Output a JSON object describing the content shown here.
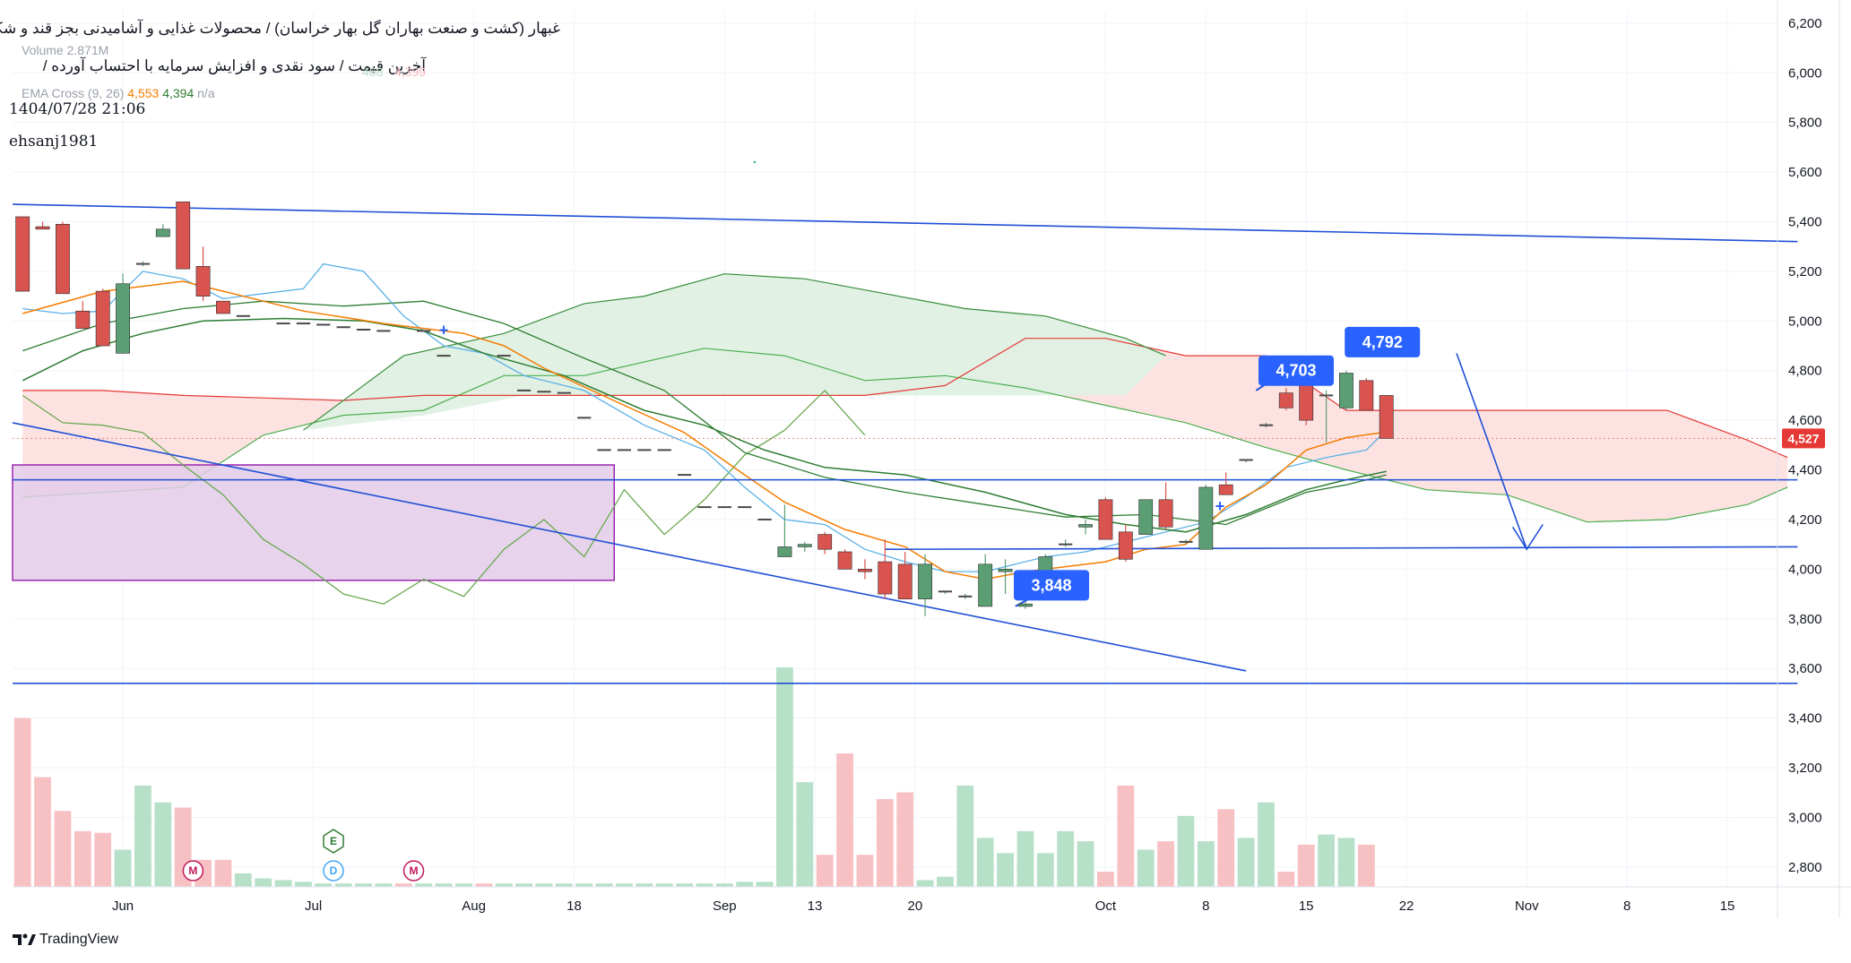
{
  "header": {
    "title_line1": "غبهار (کشت و صنعت بهاران گل بهار خراسان) / محصولات غذایی و آشامیدنی بجز قند و شکر",
    "title_line2": "آخرین قیمت / سود نقدی و افزایش سرمایه با احتساب آورده /",
    "datetime": "1404/07/28 21:06",
    "author": "ehsanj1981",
    "volume_label": "Volume",
    "volume_value": "2.871M",
    "ema_label": "EMA Cross (9, 26)",
    "ema_fast": "4,553",
    "ema_slow": "4,394",
    "ema_na": "n/a",
    "ghost_values": [
      "468",
      "4,399"
    ]
  },
  "branding": {
    "logo_text": "TradingView"
  },
  "colors": {
    "up": "#5c9e74",
    "down": "#d9534f",
    "vol_up": "#b7e0c8",
    "vol_down": "#f7c1c4",
    "trend_blue": "#1f4fd6",
    "tenkan": "#5ab0e8",
    "kijun": "#8b1a1a",
    "ema_fast": "#f57c00",
    "ema_slow": "#2e7d32",
    "chikou": "#6aa84f",
    "cloud_red": "#fde0e0",
    "cloud_green": "#dff0e3",
    "box_purple": "#e3cde9",
    "last_price_bg": "#e53935"
  },
  "chart_data": {
    "type": "candlestick",
    "y_axis": {
      "ticks": [
        2800,
        3000,
        3200,
        3400,
        3600,
        3800,
        4000,
        4200,
        4400,
        4600,
        4800,
        5000,
        5200,
        5400,
        5600,
        5800,
        6000,
        6200
      ],
      "ylim": [
        2720,
        6250
      ],
      "side": "right"
    },
    "x_axis": {
      "ticks": [
        "Jun",
        "Jul",
        "Aug",
        "18",
        "Sep",
        "13",
        "20",
        "Oct",
        "8",
        "15",
        "22",
        "Nov",
        "8",
        "15"
      ],
      "tick_bar_index": [
        5,
        14.5,
        22.5,
        27.5,
        35,
        39.5,
        44.5,
        54,
        59,
        64,
        69,
        75,
        80,
        85
      ]
    },
    "bars_count": 88,
    "candles": [
      {
        "i": 0,
        "o": 5420,
        "h": 5420,
        "l": 5120,
        "c": 5120
      },
      {
        "i": 1,
        "o": 5380,
        "h": 5400,
        "l": 5370,
        "c": 5370
      },
      {
        "i": 2,
        "o": 5390,
        "h": 5400,
        "l": 5110,
        "c": 5110
      },
      {
        "i": 3,
        "o": 5040,
        "h": 5080,
        "l": 4970,
        "c": 4970
      },
      {
        "i": 4,
        "o": 5120,
        "h": 5130,
        "l": 4900,
        "c": 4900
      },
      {
        "i": 5,
        "o": 4870,
        "h": 5190,
        "l": 4870,
        "c": 5150
      },
      {
        "i": 6,
        "o": 5230,
        "h": 5240,
        "l": 5220,
        "c": 5230
      },
      {
        "i": 7,
        "o": 5340,
        "h": 5390,
        "l": 5340,
        "c": 5370
      },
      {
        "i": 8,
        "o": 5480,
        "h": 5480,
        "l": 5210,
        "c": 5210
      },
      {
        "i": 9,
        "o": 5220,
        "h": 5300,
        "l": 5080,
        "c": 5100
      },
      {
        "i": 10,
        "o": 5080,
        "h": 5080,
        "l": 5030,
        "c": 5030
      },
      {
        "i": 11,
        "o": 5020,
        "h": 5020,
        "l": 5020,
        "c": 5020
      },
      {
        "i": 13,
        "o": 4990,
        "h": 4990,
        "l": 4990,
        "c": 4990
      },
      {
        "i": 14,
        "o": 4990,
        "h": 4990,
        "l": 4990,
        "c": 4990
      },
      {
        "i": 15,
        "o": 4985,
        "h": 4985,
        "l": 4985,
        "c": 4985
      },
      {
        "i": 16,
        "o": 4975,
        "h": 4975,
        "l": 4975,
        "c": 4975
      },
      {
        "i": 17,
        "o": 4965,
        "h": 4965,
        "l": 4965,
        "c": 4965
      },
      {
        "i": 18,
        "o": 4960,
        "h": 4960,
        "l": 4960,
        "c": 4960
      },
      {
        "i": 20,
        "o": 4960,
        "h": 4960,
        "l": 4960,
        "c": 4960
      },
      {
        "i": 21,
        "o": 4860,
        "h": 4860,
        "l": 4860,
        "c": 4860
      },
      {
        "i": 24,
        "o": 4860,
        "h": 4860,
        "l": 4860,
        "c": 4860
      },
      {
        "i": 25,
        "o": 4720,
        "h": 4720,
        "l": 4720,
        "c": 4720
      },
      {
        "i": 26,
        "o": 4715,
        "h": 4715,
        "l": 4715,
        "c": 4715
      },
      {
        "i": 27,
        "o": 4710,
        "h": 4710,
        "l": 4710,
        "c": 4710
      },
      {
        "i": 28,
        "o": 4610,
        "h": 4610,
        "l": 4610,
        "c": 4610
      },
      {
        "i": 29,
        "o": 4480,
        "h": 4480,
        "l": 4480,
        "c": 4480
      },
      {
        "i": 30,
        "o": 4480,
        "h": 4480,
        "l": 4480,
        "c": 4480
      },
      {
        "i": 31,
        "o": 4480,
        "h": 4480,
        "l": 4480,
        "c": 4480
      },
      {
        "i": 32,
        "o": 4480,
        "h": 4480,
        "l": 4480,
        "c": 4480
      },
      {
        "i": 33,
        "o": 4380,
        "h": 4380,
        "l": 4380,
        "c": 4380
      },
      {
        "i": 34,
        "o": 4250,
        "h": 4250,
        "l": 4250,
        "c": 4250
      },
      {
        "i": 35,
        "o": 4250,
        "h": 4250,
        "l": 4250,
        "c": 4250
      },
      {
        "i": 36,
        "o": 4250,
        "h": 4250,
        "l": 4250,
        "c": 4250
      },
      {
        "i": 37,
        "o": 4200,
        "h": 4200,
        "l": 4200,
        "c": 4200
      },
      {
        "i": 38,
        "o": 4050,
        "h": 4260,
        "l": 4050,
        "c": 4090
      },
      {
        "i": 39,
        "o": 4090,
        "h": 4110,
        "l": 4070,
        "c": 4100
      },
      {
        "i": 40,
        "o": 4140,
        "h": 4150,
        "l": 4060,
        "c": 4080
      },
      {
        "i": 41,
        "o": 4070,
        "h": 4080,
        "l": 4000,
        "c": 4000
      },
      {
        "i": 42,
        "o": 4000,
        "h": 4040,
        "l": 3960,
        "c": 3990
      },
      {
        "i": 43,
        "o": 4030,
        "h": 4120,
        "l": 3880,
        "c": 3900
      },
      {
        "i": 44,
        "o": 4020,
        "h": 4070,
        "l": 3880,
        "c": 3880
      },
      {
        "i": 45,
        "o": 3880,
        "h": 4060,
        "l": 3810,
        "c": 4020
      },
      {
        "i": 46,
        "o": 3910,
        "h": 3910,
        "l": 3900,
        "c": 3910
      },
      {
        "i": 47,
        "o": 3890,
        "h": 3900,
        "l": 3880,
        "c": 3890
      },
      {
        "i": 48,
        "o": 3850,
        "h": 4060,
        "l": 3850,
        "c": 4020
      },
      {
        "i": 49,
        "o": 3990,
        "h": 4040,
        "l": 3900,
        "c": 4000
      },
      {
        "i": 50,
        "o": 3850,
        "h": 3870,
        "l": 3840,
        "c": 3860
      },
      {
        "i": 51,
        "o": 3920,
        "h": 4060,
        "l": 3920,
        "c": 4050
      },
      {
        "i": 52,
        "o": 4100,
        "h": 4120,
        "l": 4090,
        "c": 4100
      },
      {
        "i": 53,
        "o": 4170,
        "h": 4200,
        "l": 4140,
        "c": 4180
      },
      {
        "i": 54,
        "o": 4280,
        "h": 4290,
        "l": 4120,
        "c": 4120
      },
      {
        "i": 55,
        "o": 4150,
        "h": 4180,
        "l": 4030,
        "c": 4040
      },
      {
        "i": 56,
        "o": 4140,
        "h": 4280,
        "l": 4140,
        "c": 4280
      },
      {
        "i": 57,
        "o": 4280,
        "h": 4350,
        "l": 4160,
        "c": 4170
      },
      {
        "i": 58,
        "o": 4110,
        "h": 4120,
        "l": 4100,
        "c": 4110
      },
      {
        "i": 59,
        "o": 4080,
        "h": 4340,
        "l": 4080,
        "c": 4330
      },
      {
        "i": 60,
        "o": 4340,
        "h": 4390,
        "l": 4300,
        "c": 4300
      },
      {
        "i": 61,
        "o": 4440,
        "h": 4440,
        "l": 4430,
        "c": 4440
      },
      {
        "i": 62,
        "o": 4580,
        "h": 4590,
        "l": 4570,
        "c": 4580
      },
      {
        "i": 63,
        "o": 4710,
        "h": 4730,
        "l": 4640,
        "c": 4650
      },
      {
        "i": 64,
        "o": 4820,
        "h": 4840,
        "l": 4580,
        "c": 4600
      },
      {
        "i": 65,
        "o": 4700,
        "h": 4720,
        "l": 4510,
        "c": 4700
      },
      {
        "i": 66,
        "o": 4650,
        "h": 4800,
        "l": 4640,
        "c": 4790
      },
      {
        "i": 67,
        "o": 4760,
        "h": 4770,
        "l": 4640,
        "c": 4640
      },
      {
        "i": 68,
        "o": 4700,
        "h": 4700,
        "l": 4527,
        "c": 4527
      }
    ],
    "volume": [
      1,
      0.65,
      0.45,
      0.33,
      0.32,
      0.22,
      0.6,
      0.5,
      0.47,
      0.16,
      0.16,
      0.08,
      0.05,
      0.04,
      0.03,
      0.02,
      0.02,
      0.02,
      0.02,
      0.02,
      0.02,
      0.02,
      0.02,
      0.02,
      0.02,
      0.02,
      0.02,
      0.02,
      0.02,
      0.02,
      0.02,
      0.02,
      0.02,
      0.02,
      0.02,
      0.02,
      0.03,
      0.03,
      1.3,
      0.62,
      0.19,
      0.79,
      0.19,
      0.52,
      0.56,
      0.04,
      0.06,
      0.6,
      0.29,
      0.2,
      0.33,
      0.2,
      0.33,
      0.27,
      0.09,
      0.6,
      0.22,
      0.27,
      0.42,
      0.27,
      0.46,
      0.29,
      0.5,
      0.09,
      0.25,
      0.31,
      0.29,
      0.25,
      0
    ],
    "series": [
      {
        "name": "EMA Cross (9, 26)",
        "values": [
          4553,
          4394
        ]
      }
    ],
    "price_labels": [
      {
        "value": "4,703"
      },
      {
        "value": "4,792"
      },
      {
        "value": "3,848"
      }
    ],
    "last_price": "4,527",
    "event_markers": [
      "M",
      "E",
      "D",
      "M"
    ]
  }
}
